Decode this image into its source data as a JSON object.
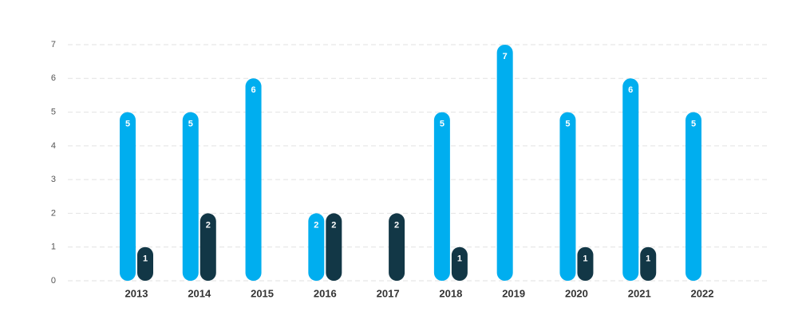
{
  "chart_data": {
    "type": "bar",
    "categories": [
      "2013",
      "2014",
      "2015",
      "2016",
      "2017",
      "2018",
      "2019",
      "2020",
      "2021",
      "2022"
    ],
    "series": [
      {
        "color": "#00aeef",
        "values": [
          5,
          5,
          6,
          2,
          null,
          5,
          7,
          5,
          6,
          5
        ]
      },
      {
        "color": "#123746",
        "values": [
          1,
          2,
          null,
          2,
          2,
          1,
          null,
          1,
          1,
          null
        ]
      }
    ],
    "ylim": [
      0,
      7
    ],
    "yticks": [
      0,
      1,
      2,
      3,
      4,
      5,
      6,
      7
    ],
    "grid": true
  }
}
